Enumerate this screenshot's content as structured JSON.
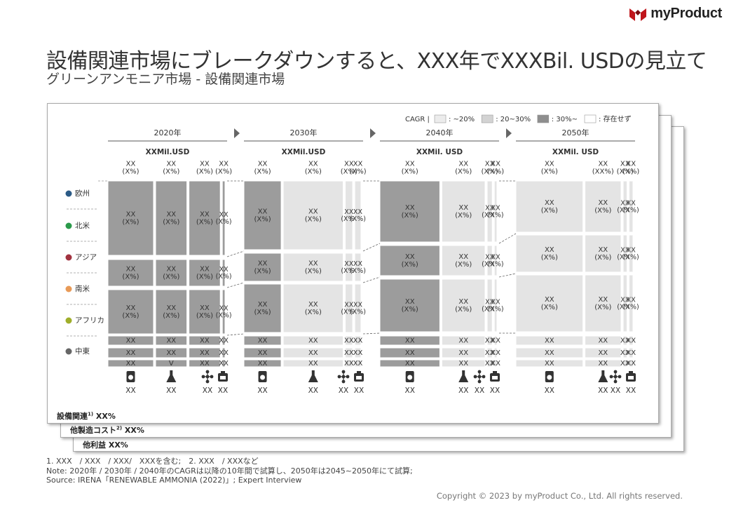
{
  "brand": {
    "name": "myProduct",
    "color": "#c0161c"
  },
  "title": "設備関連市場にブレークダウンすると、XXX年でXXXBil. USDの見立て",
  "subtitle": "グリーンアンモニア市場 - 設備関連市場",
  "layers": {
    "l1": "設備関連",
    "l1_sup": "1)",
    "l1_val": "XX%",
    "l2": "他製造コスト",
    "l2_sup": "2)",
    "l2_val": "XX%",
    "l3": "他利益",
    "l3_val": "XX%"
  },
  "legend": {
    "prefix": "CAGR |",
    "items": [
      {
        "label": ": ~20%",
        "color": "#ececec"
      },
      {
        "label": ": 20~30%",
        "color": "#d3d3d3"
      },
      {
        "label": ": 30%~",
        "color": "#8e8e8e"
      },
      {
        "label": ": 存在せず",
        "color": "#ffffff"
      }
    ]
  },
  "colors": {
    "low": "#e4e4e4",
    "mid": "#d0d0d0",
    "high": "#9c9c9c",
    "none": "#ffffff"
  },
  "regions": [
    {
      "name": "欧州",
      "color": "#2b5a86"
    },
    {
      "name": "北米",
      "color": "#2a9a4a"
    },
    {
      "name": "アジア",
      "color": "#a1323f"
    },
    {
      "name": "南米",
      "color": "#e89a57"
    },
    {
      "name": "アフリカ",
      "color": "#9fae2a"
    },
    {
      "name": "中東",
      "color": "#666666"
    }
  ],
  "icons": [
    "compressor-icon",
    "flask-icon",
    "molecule-icon",
    "hydrogen-tank-icon"
  ],
  "chart_data": {
    "type": "marimekko",
    "periods": [
      {
        "label": "2020年",
        "total": "XXMil.USD",
        "top": [
          "XX\n(X%)",
          "XX\n(X%)",
          "XX\n(X%)",
          "XX\n(X%)"
        ],
        "bottom": [
          "XX",
          "XX",
          "XX",
          "XX"
        ],
        "cagr": [
          "high",
          "high",
          "high",
          "high"
        ],
        "icons": [
          0,
          1,
          2,
          3
        ],
        "v": [
          1,
          2,
          3,
          4
        ]
      },
      {
        "label": "2030年",
        "total": "XXMil.USD",
        "top": [
          "XX\n(X%)",
          "XX\n(X%)",
          "XX\n(X%)",
          "XX\n(X%)"
        ],
        "bottom": [
          "XX",
          "XX",
          "XX",
          "XX"
        ],
        "cagr": [
          "high",
          "low",
          "low",
          "low"
        ],
        "icons": [
          0,
          1,
          2,
          3
        ],
        "v": [
          1,
          2,
          3,
          4
        ]
      },
      {
        "label": "2040年",
        "total": "XXMil. USD",
        "top": [
          "XX\n(X%)",
          "XX\n(X%)",
          "XX\n(X%)",
          "XX\n(X%)"
        ],
        "bottom": [
          "XX",
          "XX",
          "XX",
          "XX"
        ],
        "cagr": [
          "high",
          "low",
          "low",
          "low"
        ],
        "icons": [
          0,
          1,
          2,
          3
        ],
        "v": [
          1,
          2,
          3,
          4
        ]
      },
      {
        "label": "2050年",
        "total": "XXMil. USD",
        "top": [
          "XX\n(X%)",
          "XX\n(XX%)",
          "XX\n(X%)",
          "XX\n(X%)"
        ],
        "bottom": [
          "XX",
          "XX",
          "XX",
          "XX"
        ],
        "cagr": [
          "low",
          "low",
          "low",
          "low"
        ],
        "icons": [
          0,
          1,
          2,
          3
        ],
        "v": [
          1,
          2,
          3,
          4
        ]
      }
    ],
    "cell_labels": {
      "big": "XX\n(X%)",
      "small": "XX",
      "v_mark": "V",
      "pct_mark": "(%)"
    }
  },
  "notes": [
    "1. XXX　/ XXX　/ XXX/　XXXを含む;　2. XXX　/ XXXなど",
    "Note: 2020年 / 2030年 / 2040年のCAGRは以降の10年間で試算し、2050年は2045~2050年にて試算;",
    "Source: IRENA「RENEWABLE AMMONIA (2022)」; Expert Interview"
  ],
  "copyright": "Copyright © 2023 by myProduct Co., Ltd.  All rights reserved."
}
